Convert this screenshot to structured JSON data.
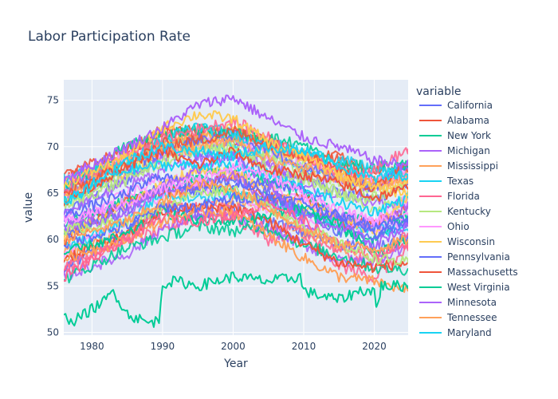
{
  "chart_data": {
    "type": "line",
    "title": "Labor Participation Rate",
    "xlabel": "Year",
    "ylabel": "value",
    "xlim": [
      1976,
      2024.8
    ],
    "ylim": [
      49.7,
      77.2
    ],
    "xticks": [
      1980,
      1990,
      2000,
      2010,
      2020
    ],
    "yticks": [
      50,
      55,
      60,
      65,
      70,
      75
    ],
    "grid": true,
    "legend": {
      "title": "variable",
      "position": "right"
    },
    "plot_background": "#E5ECF6",
    "series_summary_note_years": [
      1976,
      1985,
      1990,
      1995,
      2000,
      2005,
      2010,
      2015,
      2020,
      2024.8
    ],
    "series": [
      {
        "name": "California",
        "color": "#636EFA",
        "x": [
          1976,
          1985,
          1990,
          1995,
          2000,
          2005,
          2010,
          2015,
          2020,
          2024.8
        ],
        "values": [
          62.5,
          65.0,
          67.0,
          65.0,
          66.0,
          66.0,
          65.5,
          62.5,
          60.5,
          62.0
        ]
      },
      {
        "name": "Alabama",
        "color": "#EF553B",
        "x": [
          1976,
          1985,
          1990,
          1995,
          2000,
          2005,
          2010,
          2015,
          2020,
          2024.8
        ],
        "values": [
          58.0,
          60.5,
          63.0,
          63.5,
          63.5,
          62.0,
          59.5,
          57.5,
          57.0,
          57.5
        ]
      },
      {
        "name": "New York",
        "color": "#00CC96",
        "x": [
          1976,
          1985,
          1990,
          1995,
          2000,
          2005,
          2010,
          2015,
          2020,
          2024.8
        ],
        "values": [
          58.5,
          60.5,
          63.0,
          62.0,
          62.0,
          62.5,
          63.5,
          61.5,
          58.5,
          60.0
        ]
      },
      {
        "name": "Michigan",
        "color": "#AB63FA",
        "x": [
          1976,
          1985,
          1990,
          1995,
          2000,
          2005,
          2010,
          2015,
          2020,
          2024.8
        ],
        "values": [
          62.0,
          63.5,
          65.5,
          67.5,
          69.0,
          66.0,
          61.5,
          61.5,
          59.5,
          61.5
        ]
      },
      {
        "name": "Mississippi",
        "color": "#FFA15A",
        "x": [
          1976,
          1985,
          1990,
          1995,
          2000,
          2005,
          2010,
          2015,
          2020,
          2024.8
        ],
        "values": [
          58.0,
          60.0,
          62.0,
          63.0,
          63.0,
          60.5,
          58.0,
          56.0,
          55.5,
          54.5
        ]
      },
      {
        "name": "Texas",
        "color": "#19D3F3",
        "x": [
          1976,
          1985,
          1990,
          1995,
          2000,
          2005,
          2010,
          2015,
          2020,
          2024.8
        ],
        "values": [
          64.0,
          67.5,
          68.0,
          68.0,
          68.0,
          67.0,
          65.5,
          64.0,
          63.0,
          64.5
        ]
      },
      {
        "name": "Florida",
        "color": "#FF6692",
        "x": [
          1976,
          1985,
          1990,
          1995,
          2000,
          2005,
          2010,
          2015,
          2020,
          2024.8
        ],
        "values": [
          56.0,
          60.0,
          62.5,
          62.0,
          62.5,
          64.0,
          62.0,
          59.5,
          58.5,
          59.5
        ]
      },
      {
        "name": "Kentucky",
        "color": "#B6E880",
        "x": [
          1976,
          1985,
          1990,
          1995,
          2000,
          2005,
          2010,
          2015,
          2020,
          2024.8
        ],
        "values": [
          61.0,
          62.0,
          63.5,
          65.0,
          65.5,
          63.5,
          61.5,
          59.5,
          58.0,
          57.5
        ]
      },
      {
        "name": "Ohio",
        "color": "#FF97FF",
        "x": [
          1976,
          1985,
          1990,
          1995,
          2000,
          2005,
          2010,
          2015,
          2020,
          2024.8
        ],
        "values": [
          62.0,
          64.0,
          65.5,
          66.5,
          68.0,
          67.0,
          65.0,
          63.0,
          62.0,
          62.5
        ]
      },
      {
        "name": "Wisconsin",
        "color": "#FECB52",
        "x": [
          1976,
          1985,
          1990,
          1995,
          2000,
          2005,
          2010,
          2015,
          2020,
          2024.8
        ],
        "values": [
          66.0,
          69.0,
          72.0,
          73.5,
          73.0,
          70.5,
          69.0,
          67.0,
          65.5,
          65.0
        ]
      },
      {
        "name": "Pennsylvania",
        "color": "#636EFA",
        "x": [
          1976,
          1985,
          1990,
          1995,
          2000,
          2005,
          2010,
          2015,
          2020,
          2024.8
        ],
        "values": [
          59.5,
          61.5,
          63.5,
          63.5,
          64.5,
          64.5,
          64.0,
          62.5,
          61.5,
          62.5
        ]
      },
      {
        "name": "Massachusetts",
        "color": "#EF553B",
        "x": [
          1976,
          1985,
          1990,
          1995,
          2000,
          2005,
          2010,
          2015,
          2020,
          2024.8
        ],
        "values": [
          64.0,
          68.0,
          69.5,
          68.0,
          69.5,
          67.5,
          67.0,
          66.0,
          64.5,
          65.5
        ]
      },
      {
        "name": "West Virginia",
        "color": "#00CC96",
        "x": [
          1976,
          1977,
          1980,
          1982,
          1983,
          1985,
          1988,
          1989.5,
          1990,
          1992,
          1995,
          2000,
          2005,
          2009.5,
          2010,
          2012,
          2015,
          2018,
          2020,
          2020.3,
          2021,
          2024.8
        ],
        "values": [
          52.5,
          51.0,
          52.5,
          53.5,
          54.5,
          52.0,
          51.0,
          51.3,
          55.3,
          55.5,
          55.0,
          56.0,
          55.5,
          56.0,
          54.5,
          54.0,
          53.5,
          54.5,
          54.5,
          52.5,
          55.0,
          55.0
        ]
      },
      {
        "name": "Minnesota",
        "color": "#AB63FA",
        "x": [
          1976,
          1985,
          1990,
          1995,
          2000,
          2005,
          2010,
          2015,
          2020,
          2024.8
        ],
        "values": [
          66.5,
          70.0,
          72.0,
          74.5,
          75.3,
          73.0,
          71.0,
          70.0,
          68.5,
          68.0
        ]
      },
      {
        "name": "Tennessee",
        "color": "#FFA15A",
        "x": [
          1976,
          1985,
          1990,
          1995,
          2000,
          2005,
          2010,
          2015,
          2020,
          2024.8
        ],
        "values": [
          60.0,
          62.0,
          64.0,
          66.0,
          65.5,
          63.5,
          61.0,
          59.5,
          59.0,
          60.0
        ]
      },
      {
        "name": "Maryland",
        "color": "#19D3F3",
        "x": [
          1976,
          1985,
          1990,
          1995,
          2000,
          2005,
          2010,
          2015,
          2020,
          2024.8
        ],
        "values": [
          64.0,
          68.5,
          70.0,
          69.5,
          69.0,
          70.0,
          69.5,
          68.0,
          66.5,
          67.0
        ]
      }
    ]
  }
}
